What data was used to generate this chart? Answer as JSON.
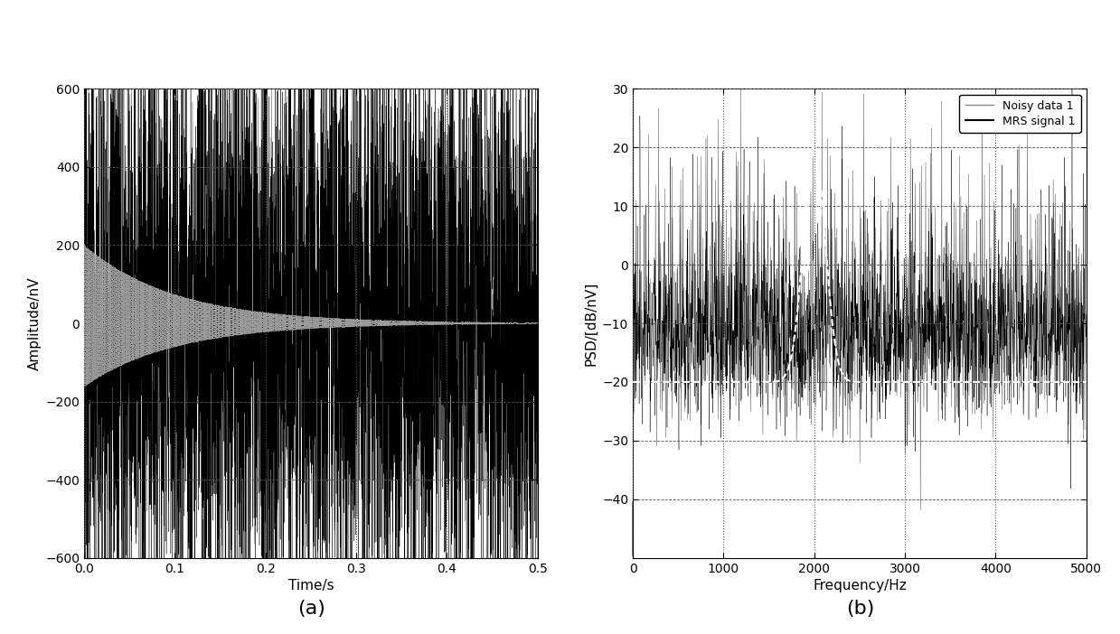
{
  "fig_width": 12.39,
  "fig_height": 7.02,
  "dpi": 100,
  "background_color": "#ffffff",
  "plot_a": {
    "xlabel": "Time/s",
    "ylabel": "Amplitude/nV",
    "xlim": [
      0,
      0.5
    ],
    "ylim": [
      -600,
      600
    ],
    "xticks": [
      0,
      0.1,
      0.2,
      0.3,
      0.4,
      0.5
    ],
    "yticks": [
      -600,
      -400,
      -200,
      0,
      200,
      400,
      600
    ],
    "noise_color": "#000000",
    "signal_color": "#aaaaaa",
    "signal_amplitude": 200,
    "signal_decay": 10.0,
    "signal_freq": 2000,
    "noise_amplitude": 400,
    "fs": 10000,
    "duration": 0.5
  },
  "plot_b": {
    "xlabel": "Frequency/Hz",
    "ylabel": "PSD/[dB/nV]",
    "xlim": [
      0,
      5000
    ],
    "ylim": [
      -50,
      30
    ],
    "xticks": [
      0,
      1000,
      2000,
      3000,
      4000,
      5000
    ],
    "yticks": [
      -40,
      -30,
      -20,
      -10,
      0,
      10,
      20,
      30
    ],
    "noise_color": "#000000",
    "signal_color": "#ffffff",
    "legend_noisy": "Noisy data 1",
    "legend_mrs": "MRS signal 1",
    "signal_peak_freq": 2000,
    "signal_bw": 120,
    "noise_floor_mean": -13,
    "noise_floor_std": 7,
    "fs": 10000,
    "duration": 0.5
  },
  "label_a": "(a)",
  "label_b": "(b)",
  "label_fontsize": 16
}
